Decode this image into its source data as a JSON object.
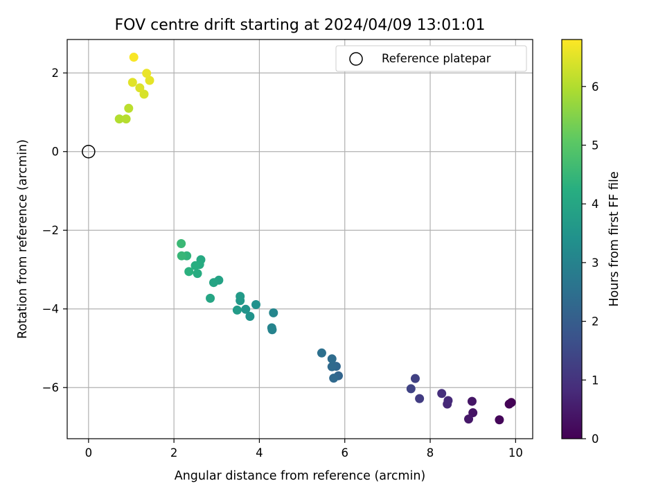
{
  "chart_data": {
    "type": "scatter",
    "title": "FOV centre drift starting at 2024/04/09 13:01:01",
    "xlabel": "Angular distance from reference (arcmin)",
    "ylabel": "Rotation from reference (arcmin)",
    "xlim": [
      -0.5,
      10.4
    ],
    "ylim": [
      -7.3,
      2.85
    ],
    "xticks": [
      0,
      2,
      4,
      6,
      8,
      10
    ],
    "yticks": [
      -6,
      -4,
      -2,
      0,
      2
    ],
    "grid": true,
    "legend_position": "top-right",
    "reference_point": {
      "label": "Reference platepar",
      "x": 0,
      "y": 0
    },
    "colorbar": {
      "label": "Hours from first FF file",
      "range": [
        0,
        6.8
      ],
      "ticks": [
        0,
        1,
        2,
        3,
        4,
        5,
        6
      ],
      "colormap": "viridis"
    },
    "points": [
      {
        "x": 9.9,
        "y": -6.38,
        "c": 0.0
      },
      {
        "x": 9.85,
        "y": -6.42,
        "c": 0.05
      },
      {
        "x": 9.62,
        "y": -6.82,
        "c": 0.1
      },
      {
        "x": 9.0,
        "y": -6.64,
        "c": 0.35
      },
      {
        "x": 8.98,
        "y": -6.35,
        "c": 0.4
      },
      {
        "x": 8.9,
        "y": -6.8,
        "c": 0.45
      },
      {
        "x": 8.4,
        "y": -6.42,
        "c": 0.75
      },
      {
        "x": 8.42,
        "y": -6.33,
        "c": 0.8
      },
      {
        "x": 8.27,
        "y": -6.15,
        "c": 0.9
      },
      {
        "x": 7.75,
        "y": -6.28,
        "c": 1.2
      },
      {
        "x": 7.65,
        "y": -5.77,
        "c": 1.3
      },
      {
        "x": 7.55,
        "y": -6.03,
        "c": 1.35
      },
      {
        "x": 5.85,
        "y": -5.7,
        "c": 2.2
      },
      {
        "x": 5.8,
        "y": -5.46,
        "c": 2.25
      },
      {
        "x": 5.74,
        "y": -5.76,
        "c": 2.3
      },
      {
        "x": 5.7,
        "y": -5.47,
        "c": 2.35
      },
      {
        "x": 5.7,
        "y": -5.27,
        "c": 2.4
      },
      {
        "x": 5.46,
        "y": -5.12,
        "c": 2.5
      },
      {
        "x": 4.3,
        "y": -4.53,
        "c": 3.0
      },
      {
        "x": 4.29,
        "y": -4.48,
        "c": 3.05
      },
      {
        "x": 4.33,
        "y": -4.1,
        "c": 3.1
      },
      {
        "x": 3.92,
        "y": -3.89,
        "c": 3.4
      },
      {
        "x": 3.78,
        "y": -4.19,
        "c": 3.45
      },
      {
        "x": 3.68,
        "y": -4.01,
        "c": 3.5
      },
      {
        "x": 3.55,
        "y": -3.79,
        "c": 3.6
      },
      {
        "x": 3.55,
        "y": -3.68,
        "c": 3.65
      },
      {
        "x": 3.48,
        "y": -4.03,
        "c": 3.7
      },
      {
        "x": 3.05,
        "y": -3.27,
        "c": 3.9
      },
      {
        "x": 2.93,
        "y": -3.33,
        "c": 3.95
      },
      {
        "x": 2.85,
        "y": -3.73,
        "c": 4.0
      },
      {
        "x": 2.63,
        "y": -2.75,
        "c": 4.1
      },
      {
        "x": 2.6,
        "y": -2.87,
        "c": 4.15
      },
      {
        "x": 2.55,
        "y": -3.1,
        "c": 4.2
      },
      {
        "x": 2.5,
        "y": -2.9,
        "c": 4.25
      },
      {
        "x": 2.35,
        "y": -3.05,
        "c": 4.3
      },
      {
        "x": 2.3,
        "y": -2.65,
        "c": 4.4
      },
      {
        "x": 2.18,
        "y": -2.65,
        "c": 4.5
      },
      {
        "x": 2.17,
        "y": -2.34,
        "c": 4.55
      },
      {
        "x": 0.72,
        "y": 0.83,
        "c": 6.0
      },
      {
        "x": 0.88,
        "y": 0.83,
        "c": 6.05
      },
      {
        "x": 0.94,
        "y": 1.1,
        "c": 6.1
      },
      {
        "x": 1.3,
        "y": 1.46,
        "c": 6.4
      },
      {
        "x": 1.2,
        "y": 1.62,
        "c": 6.45
      },
      {
        "x": 1.03,
        "y": 1.76,
        "c": 6.5
      },
      {
        "x": 1.43,
        "y": 1.81,
        "c": 6.55
      },
      {
        "x": 1.36,
        "y": 1.99,
        "c": 6.6
      },
      {
        "x": 1.06,
        "y": 2.4,
        "c": 6.75
      }
    ]
  }
}
